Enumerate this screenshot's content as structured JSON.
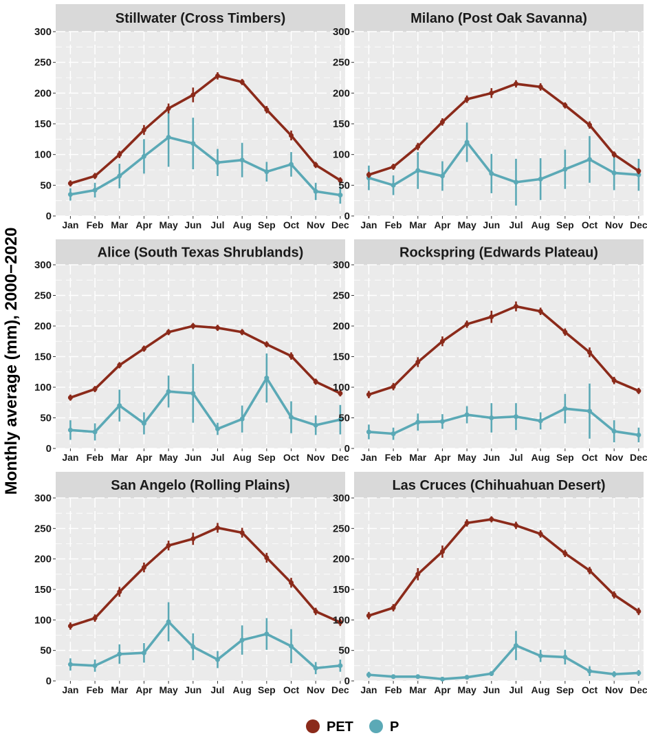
{
  "chart_data": {
    "type": "line",
    "facet_layout": "3 rows x 2 columns",
    "ylabel": "Monthly average (mm), 2000−2020",
    "xlabel": "",
    "ylim": [
      0,
      300
    ],
    "yticks": [
      0,
      50,
      100,
      150,
      200,
      250,
      300
    ],
    "categories": [
      "Jan",
      "Feb",
      "Mar",
      "Apr",
      "May",
      "Jun",
      "Jul",
      "Aug",
      "Sep",
      "Oct",
      "Nov",
      "Dec"
    ],
    "legend": {
      "position": "bottom",
      "items": [
        {
          "name": "PET",
          "color": "#8B2A1A"
        },
        {
          "name": "P",
          "color": "#5BA9B6"
        }
      ]
    },
    "colors": {
      "PET": "#8B2A1A",
      "P": "#5BA9B6",
      "panel_bg": "#EBEBEB",
      "strip_bg": "#D9D9D9",
      "grid": "#FFFFFF"
    },
    "panels": [
      {
        "title": "Stillwater (Cross Timbers)",
        "series": [
          {
            "name": "PET",
            "values": [
              53,
              65,
              100,
              140,
              175,
              197,
              228,
              218,
              173,
              131,
              83,
              58
            ],
            "error": [
              5,
              5,
              6,
              8,
              8,
              12,
              6,
              5,
              6,
              8,
              5,
              5
            ]
          },
          {
            "name": "P",
            "values": [
              35,
              42,
              65,
              97,
              128,
              118,
              87,
              91,
              72,
              84,
              40,
              34
            ],
            "error": [
              10,
              12,
              20,
              28,
              48,
              42,
              22,
              28,
              16,
              20,
              14,
              14
            ]
          }
        ]
      },
      {
        "title": "Milano (Post Oak Savanna)",
        "series": [
          {
            "name": "PET",
            "values": [
              67,
              80,
              113,
              153,
              190,
              200,
              215,
              210,
              180,
              148,
              100,
              73
            ],
            "error": [
              5,
              5,
              6,
              6,
              6,
              8,
              6,
              6,
              5,
              6,
              5,
              5
            ]
          },
          {
            "name": "P",
            "values": [
              62,
              50,
              74,
              65,
              120,
              69,
              55,
              60,
              76,
              92,
              70,
              67
            ],
            "error": [
              20,
              16,
              30,
              24,
              32,
              32,
              38,
              34,
              32,
              38,
              28,
              26
            ]
          }
        ]
      },
      {
        "title": "Alice (South Texas Shrublands)",
        "series": [
          {
            "name": "PET",
            "values": [
              83,
              97,
              136,
              163,
              190,
              200,
              197,
              190,
              170,
              151,
              109,
              90
            ],
            "error": [
              5,
              5,
              5,
              5,
              5,
              5,
              5,
              5,
              5,
              6,
              5,
              5
            ]
          },
          {
            "name": "P",
            "values": [
              30,
              27,
              70,
              41,
              93,
              90,
              32,
              48,
              115,
              51,
              38,
              47
            ],
            "error": [
              16,
              14,
              26,
              18,
              26,
              48,
              10,
              22,
              40,
              26,
              16,
              24
            ]
          }
        ]
      },
      {
        "title": "Rockspring (Edwards Plateau)",
        "series": [
          {
            "name": "PET",
            "values": [
              88,
              101,
              141,
              175,
              203,
              215,
              232,
              224,
              190,
              157,
              111,
              94
            ],
            "error": [
              6,
              6,
              8,
              8,
              6,
              10,
              8,
              6,
              6,
              8,
              6,
              5
            ]
          },
          {
            "name": "P",
            "values": [
              27,
              24,
              43,
              44,
              55,
              50,
              52,
              45,
              65,
              61,
              28,
              22
            ],
            "error": [
              12,
              10,
              14,
              12,
              14,
              24,
              22,
              14,
              24,
              45,
              18,
              12
            ]
          }
        ]
      },
      {
        "title": "San Angelo (Rolling Plains)",
        "series": [
          {
            "name": "PET",
            "values": [
              90,
              103,
              146,
              186,
              222,
              233,
              251,
              243,
              202,
              161,
              114,
              96
            ],
            "error": [
              6,
              6,
              8,
              8,
              8,
              10,
              8,
              8,
              8,
              8,
              6,
              6
            ]
          },
          {
            "name": "P",
            "values": [
              27,
              25,
              44,
              46,
              97,
              56,
              35,
              67,
              77,
              57,
              21,
              25
            ],
            "error": [
              10,
              10,
              16,
              16,
              32,
              22,
              14,
              24,
              26,
              28,
              10,
              10
            ]
          }
        ]
      },
      {
        "title": "Las Cruces (Chihuahuan Desert)",
        "series": [
          {
            "name": "PET",
            "values": [
              107,
              120,
              175,
              212,
              259,
              265,
              255,
              241,
              209,
              181,
              141,
              114
            ],
            "error": [
              6,
              6,
              10,
              10,
              6,
              5,
              6,
              6,
              6,
              6,
              6,
              6
            ]
          },
          {
            "name": "P",
            "values": [
              10,
              7,
              7,
              3,
              6,
              12,
              58,
              41,
              39,
              16,
              11,
              13
            ],
            "error": [
              5,
              3,
              3,
              2,
              3,
              4,
              24,
              10,
              12,
              8,
              5,
              5
            ]
          }
        ]
      }
    ]
  }
}
